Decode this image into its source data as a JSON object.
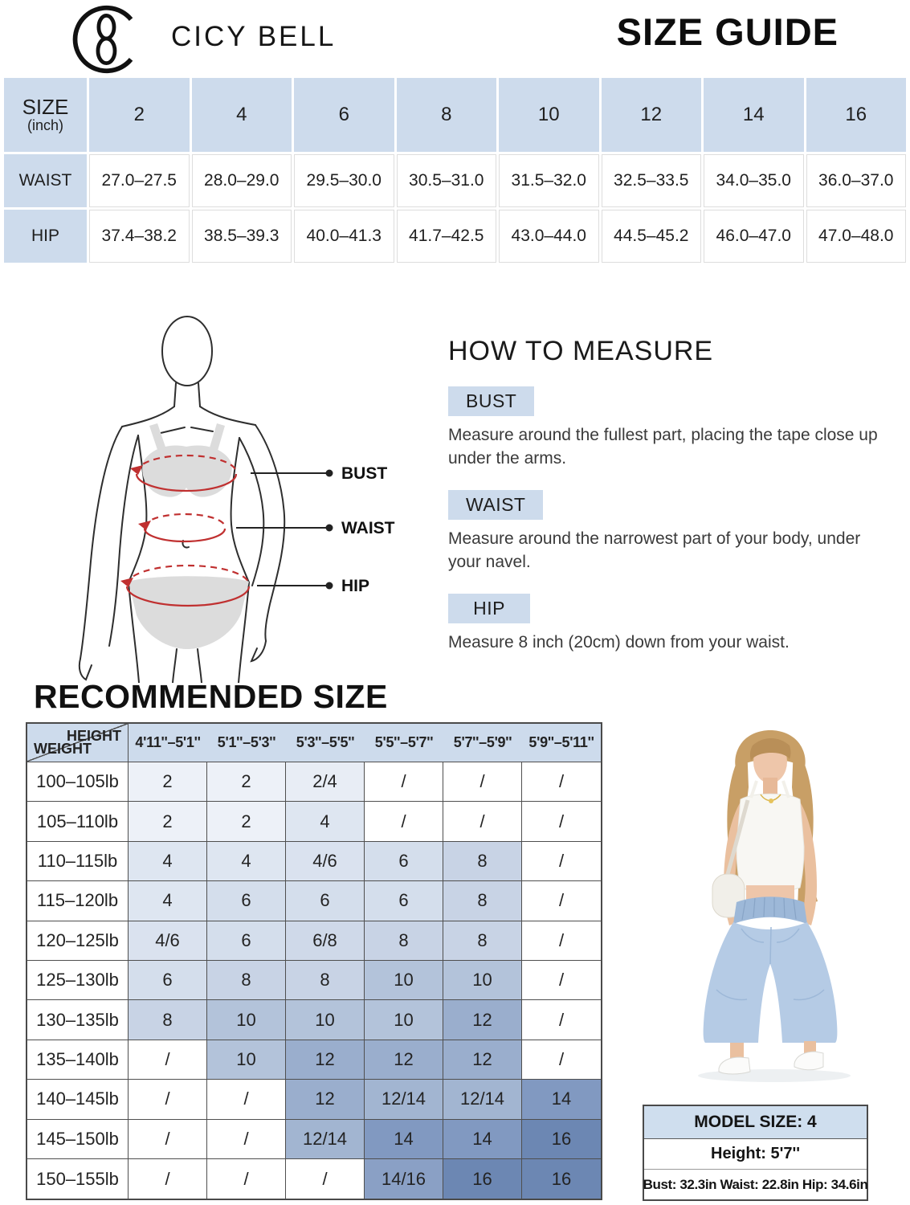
{
  "header": {
    "brand": "CICY BELL",
    "title": "SIZE GUIDE",
    "logo_icon": "cicy-bell-logo"
  },
  "size_table": {
    "corner_label": "SIZE",
    "corner_sub": "(inch)",
    "sizes": [
      "2",
      "4",
      "6",
      "8",
      "10",
      "12",
      "14",
      "16"
    ],
    "rows": [
      {
        "label": "WAIST",
        "values": [
          "27.0–27.5",
          "28.0–29.0",
          "29.5–30.0",
          "30.5–31.0",
          "31.5–32.0",
          "32.5–33.5",
          "34.0–35.0",
          "36.0–37.0"
        ]
      },
      {
        "label": "HIP",
        "values": [
          "37.4–38.2",
          "38.5–39.3",
          "40.0–41.3",
          "41.7–42.5",
          "43.0–44.0",
          "44.5–45.2",
          "46.0–47.0",
          "47.0–48.0"
        ]
      }
    ]
  },
  "figure": {
    "labels": [
      "BUST",
      "WAIST",
      "HIP"
    ],
    "tape_color": "#c03030"
  },
  "how_to_measure": {
    "title": "HOW TO MEASURE",
    "items": [
      {
        "label": "BUST",
        "text": "Measure around the fullest part, placing the tape close up under the arms."
      },
      {
        "label": "WAIST",
        "text": "Measure around the narrowest part of your body, under your navel."
      },
      {
        "label": "HIP",
        "text": "Measure 8 inch (20cm) down from your waist."
      }
    ]
  },
  "recommended": {
    "title": "RECOMMENDED SIZE",
    "corner_top": "HEIGHT",
    "corner_bottom": "WEIGHT",
    "height_cols": [
      "4'11''–5'1''",
      "5'1''–5'3''",
      "5'3''–5'5''",
      "5'5''–5'7''",
      "5'7''–5'9''",
      "5'9''–5'11''"
    ],
    "rows": [
      {
        "weight": "100–105lb",
        "values": [
          "2",
          "2",
          "2/4",
          "/",
          "/",
          "/"
        ]
      },
      {
        "weight": "105–110lb",
        "values": [
          "2",
          "2",
          "4",
          "/",
          "/",
          "/"
        ]
      },
      {
        "weight": "110–115lb",
        "values": [
          "4",
          "4",
          "4/6",
          "6",
          "8",
          "/"
        ]
      },
      {
        "weight": "115–120lb",
        "values": [
          "4",
          "6",
          "6",
          "6",
          "8",
          "/"
        ]
      },
      {
        "weight": "120–125lb",
        "values": [
          "4/6",
          "6",
          "6/8",
          "8",
          "8",
          "/"
        ]
      },
      {
        "weight": "125–130lb",
        "values": [
          "6",
          "8",
          "8",
          "10",
          "10",
          "/"
        ]
      },
      {
        "weight": "130–135lb",
        "values": [
          "8",
          "10",
          "10",
          "10",
          "12",
          "/"
        ]
      },
      {
        "weight": "135–140lb",
        "values": [
          "/",
          "10",
          "12",
          "12",
          "12",
          "/"
        ]
      },
      {
        "weight": "140–145lb",
        "values": [
          "/",
          "/",
          "12",
          "12/14",
          "12/14",
          "14"
        ]
      },
      {
        "weight": "145–150lb",
        "values": [
          "/",
          "/",
          "12/14",
          "14",
          "14",
          "16"
        ]
      },
      {
        "weight": "150–155lb",
        "values": [
          "/",
          "/",
          "/",
          "14/16",
          "16",
          "16"
        ]
      }
    ],
    "cell_colors": {
      "2": "#edf1f8",
      "2/4": "#e8edf5",
      "4": "#dee6f1",
      "4/6": "#dae2ef",
      "6": "#d4deec",
      "6/8": "#cfd9e9",
      "8": "#c8d3e5",
      "10": "#b3c3da",
      "12": "#9aaecd",
      "12/14": "#a2b5d1",
      "14": "#8199c1",
      "14/16": "#8aa0c5",
      "16": "#6c87b3",
      "/": "#ffffff"
    }
  },
  "model_info": {
    "size_label": "MODEL SIZE: 4",
    "height_label": "Height: 5'7''",
    "measurements": "Bust: 32.3in Waist: 22.8in Hip: 34.6in"
  },
  "colors": {
    "table_header_blue": "#cddbec",
    "table_border_dark": "#4a4a4a",
    "measure_tape_red": "#c03030"
  }
}
